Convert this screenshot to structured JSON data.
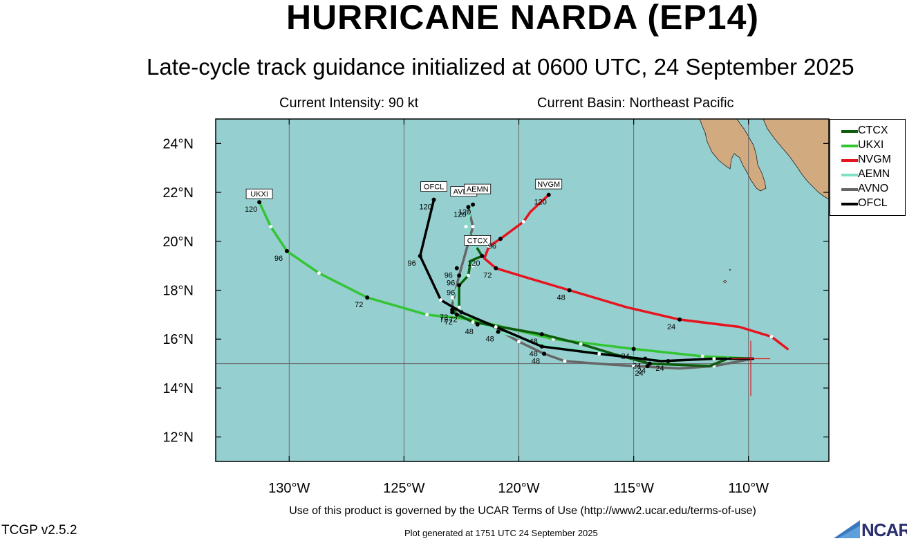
{
  "header": {
    "title": "HURRICANE NARDA (EP14)",
    "subtitle": "Late-cycle track guidance initialized at 0600 UTC, 24 September 2025",
    "current_intensity": "Current Intensity: 90 kt",
    "current_basin": "Current Basin: Northeast Pacific"
  },
  "map": {
    "lon_range": [
      -133.2,
      -106.5
    ],
    "lat_range": [
      11.0,
      25.0
    ],
    "lon_ticks": [
      -130,
      -125,
      -120,
      -115,
      -110
    ],
    "lat_ticks": [
      12,
      14,
      16,
      18,
      20,
      22,
      24
    ],
    "lon_tick_labels": [
      "130°W",
      "125°W",
      "120°W",
      "115°W",
      "110°W"
    ],
    "lat_tick_labels": [
      "12°N",
      "14°N",
      "16°N",
      "18°N",
      "20°N",
      "22°N",
      "24°N"
    ],
    "gridlines": [
      {
        "type": "lon",
        "value": -130
      },
      {
        "type": "lon",
        "value": -125
      },
      {
        "type": "lon",
        "value": -120
      },
      {
        "type": "lon",
        "value": -115
      },
      {
        "type": "lon",
        "value": -110
      },
      {
        "type": "lat",
        "value": 15
      },
      {
        "type": "lat",
        "value": 25
      }
    ],
    "ocean_color": "#96cfcf",
    "land_color": "#d2aa80",
    "current_position": {
      "lon": -109.9,
      "lat": 15.2
    }
  },
  "models": [
    {
      "name": "CTCX",
      "color": "#0c5c0c",
      "track": [
        [
          -109.8,
          15.2
        ],
        [
          -110.9,
          15.2
        ],
        [
          -111.7,
          14.9
        ],
        [
          -114.3,
          15.0
        ],
        [
          -115.9,
          15.4
        ],
        [
          -117.3,
          15.8
        ],
        [
          -119.0,
          16.2
        ],
        [
          -122.0,
          16.7
        ],
        [
          -122.9,
          17.1
        ],
        [
          -122.6,
          17.3
        ],
        [
          -122.6,
          18.2
        ],
        [
          -122.2,
          18.6
        ],
        [
          -122.1,
          19.2
        ],
        [
          -121.6,
          19.4
        ],
        [
          -121.8,
          19.7
        ]
      ],
      "dots": [
        {
          "lon": -114.3,
          "lat": 15.0,
          "label": "24"
        },
        {
          "lon": -119.0,
          "lat": 16.2,
          "label": "48"
        },
        {
          "lon": -122.9,
          "lat": 17.1,
          "label": "72"
        },
        {
          "lon": -122.6,
          "lat": 18.2,
          "label": "96"
        },
        {
          "lon": -121.6,
          "lat": 19.4,
          "label": "120"
        }
      ],
      "tag": {
        "lon": -121.8,
        "lat": 19.7,
        "text": "CTCX"
      }
    },
    {
      "name": "UKXI",
      "color": "#33c533",
      "track": [
        [
          -109.8,
          15.2
        ],
        [
          -112.0,
          15.3
        ],
        [
          -115.0,
          15.6
        ],
        [
          -118.5,
          16.0
        ],
        [
          -122.0,
          16.8
        ],
        [
          -124.0,
          17.0
        ],
        [
          -126.6,
          17.7
        ],
        [
          -128.7,
          18.7
        ],
        [
          -130.1,
          19.6
        ],
        [
          -130.8,
          20.6
        ],
        [
          -131.3,
          21.6
        ]
      ],
      "dots": [
        {
          "lon": -115.0,
          "lat": 15.6,
          "label": "24"
        },
        {
          "lon": -121.8,
          "lat": 16.6,
          "label": "48"
        },
        {
          "lon": -126.6,
          "lat": 17.7,
          "label": "72"
        },
        {
          "lon": -130.1,
          "lat": 19.6,
          "label": "96"
        },
        {
          "lon": -131.3,
          "lat": 21.6,
          "label": "120"
        }
      ],
      "tag": {
        "lon": -131.3,
        "lat": 21.6,
        "text": "UKXI"
      }
    },
    {
      "name": "NVGM",
      "color": "#e6141e",
      "track": [
        [
          -108.3,
          15.6
        ],
        [
          -109.0,
          16.1
        ],
        [
          -110.4,
          16.5
        ],
        [
          -113.0,
          16.8
        ],
        [
          -115.3,
          17.3
        ],
        [
          -117.8,
          18.0
        ],
        [
          -119.6,
          18.5
        ],
        [
          -121.0,
          18.9
        ],
        [
          -121.5,
          19.3
        ],
        [
          -121.3,
          19.8
        ],
        [
          -120.8,
          20.1
        ],
        [
          -119.8,
          20.8
        ],
        [
          -119.5,
          21.2
        ],
        [
          -118.7,
          21.9
        ]
      ],
      "dots": [
        {
          "lon": -113.0,
          "lat": 16.8,
          "label": "24"
        },
        {
          "lon": -117.8,
          "lat": 18.0,
          "label": "48"
        },
        {
          "lon": -121.0,
          "lat": 18.9,
          "label": "72"
        },
        {
          "lon": -120.8,
          "lat": 20.1,
          "label": "96"
        },
        {
          "lon": -118.7,
          "lat": 21.9,
          "label": "120"
        }
      ],
      "tag": {
        "lon": -118.7,
        "lat": 22.0,
        "text": "NVGM"
      }
    },
    {
      "name": "AEMN",
      "color": "#7ee0c4",
      "track": [
        [
          -109.8,
          15.2
        ],
        [
          -111.5,
          15.2
        ],
        [
          -113.5,
          15.1
        ],
        [
          -116.0,
          15.4
        ],
        [
          -118.5,
          15.7
        ],
        [
          -120.9,
          16.3
        ],
        [
          -122.4,
          17.0
        ],
        [
          -122.9,
          17.7
        ],
        [
          -122.5,
          18.4
        ],
        [
          -122.0,
          19.0
        ],
        [
          -121.9,
          19.6
        ],
        [
          -122.3,
          20.6
        ],
        [
          -122.0,
          21.5
        ]
      ],
      "dots": [
        {
          "lon": -113.5,
          "lat": 15.1,
          "label": "24"
        },
        {
          "lon": -120.9,
          "lat": 16.3,
          "label": "48"
        },
        {
          "lon": -122.9,
          "lat": 17.2,
          "label": "72"
        },
        {
          "lon": -122.7,
          "lat": 18.9,
          "label": "96"
        },
        {
          "lon": -122.0,
          "lat": 21.5,
          "label": "120"
        }
      ],
      "tag": {
        "lon": -121.8,
        "lat": 21.8,
        "text": "AEMN"
      }
    },
    {
      "name": "AVNO",
      "color": "#666666",
      "track": [
        [
          -109.8,
          15.2
        ],
        [
          -111.5,
          14.9
        ],
        [
          -113.0,
          14.8
        ],
        [
          -115.0,
          14.9
        ],
        [
          -116.6,
          15.0
        ],
        [
          -118.0,
          15.1
        ],
        [
          -118.9,
          15.4
        ],
        [
          -120.0,
          15.9
        ],
        [
          -121.3,
          16.6
        ],
        [
          -122.7,
          17.0
        ],
        [
          -122.9,
          17.4
        ],
        [
          -122.6,
          18.6
        ],
        [
          -122.3,
          19.6
        ],
        [
          -122.0,
          20.6
        ],
        [
          -122.2,
          21.4
        ]
      ],
      "dots": [
        {
          "lon": -114.4,
          "lat": 14.9,
          "label": "24"
        },
        {
          "lon": -118.9,
          "lat": 15.4,
          "label": "48"
        },
        {
          "lon": -122.7,
          "lat": 17.0,
          "label": "72"
        },
        {
          "lon": -122.6,
          "lat": 18.6,
          "label": "96"
        },
        {
          "lon": -122.2,
          "lat": 21.4,
          "label": "120"
        }
      ],
      "tag": {
        "lon": -122.4,
        "lat": 21.7,
        "text": "AVNO"
      }
    },
    {
      "name": "OFCL",
      "color": "#000000",
      "track": [
        [
          -109.8,
          15.2
        ],
        [
          -111.5,
          15.2
        ],
        [
          -113.8,
          15.1
        ],
        [
          -116.5,
          15.4
        ],
        [
          -119.0,
          15.7
        ],
        [
          -121.0,
          16.5
        ],
        [
          -122.5,
          17.1
        ],
        [
          -123.4,
          17.6
        ],
        [
          -124.3,
          19.4
        ],
        [
          -123.7,
          21.7
        ]
      ],
      "dots": [
        {
          "lon": -114.5,
          "lat": 15.2,
          "label": "24"
        },
        {
          "lon": -119.0,
          "lat": 15.7,
          "label": "48"
        },
        {
          "lon": -122.5,
          "lat": 17.1,
          "label": "72"
        },
        {
          "lon": -124.3,
          "lat": 19.4,
          "label": "96"
        },
        {
          "lon": -123.7,
          "lat": 21.7,
          "label": "120"
        }
      ],
      "tag": {
        "lon": -123.7,
        "lat": 21.9,
        "text": "OFCL"
      }
    }
  ],
  "legend": {
    "items": [
      "CTCX",
      "UKXI",
      "NVGM",
      "AEMN",
      "AVNO",
      "OFCL"
    ]
  },
  "footer": {
    "terms": "Use of this product is governed by the UCAR Terms of Use (http://www2.ucar.edu/terms-of-use)",
    "version": "TCGP v2.5.2",
    "generated": "Plot generated at 1751 UTC   24 September 2025",
    "logo_text": "NCAR"
  }
}
